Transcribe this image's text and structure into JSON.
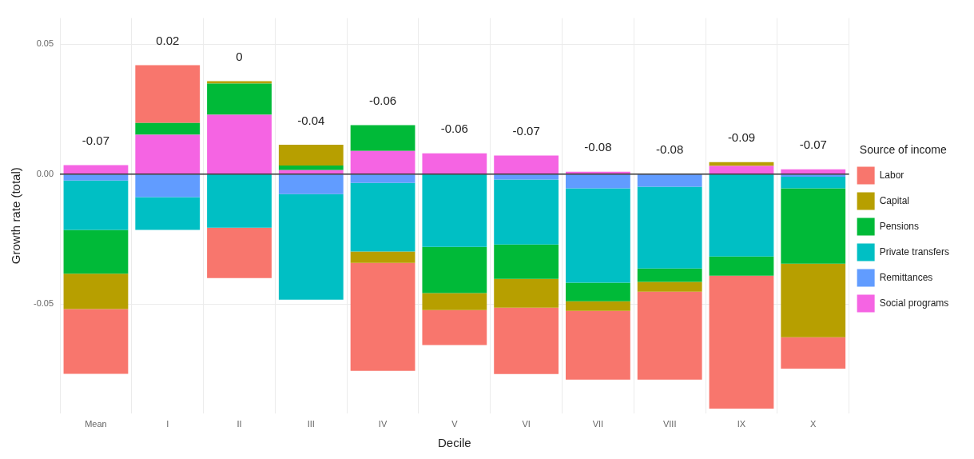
{
  "chart_data": {
    "type": "bar",
    "stacked": true,
    "xlabel": "Decile",
    "ylabel": "Growth rate (total)",
    "legend_title": "Source of income",
    "legend": "right",
    "grid": true,
    "categories": [
      "Mean",
      "I",
      "II",
      "III",
      "IV",
      "V",
      "VI",
      "VII",
      "VIII",
      "IX",
      "X"
    ],
    "series": [
      {
        "name": "Social programs",
        "color": "#f564e3",
        "values": [
          0.0034,
          0.0151,
          0.0228,
          0.0015,
          0.0089,
          0.008,
          0.0071,
          0.0009,
          0,
          0.0031,
          0.0018
        ]
      },
      {
        "name": "Remittances",
        "color": "#619cff",
        "values": [
          -0.0025,
          -0.0089,
          0,
          -0.0077,
          -0.0034,
          0,
          -0.0021,
          -0.0055,
          -0.0049,
          0,
          -0.001
        ]
      },
      {
        "name": "Private transfers",
        "color": "#00bfc4",
        "values": [
          -0.019,
          -0.0126,
          -0.0206,
          -0.0406,
          -0.0264,
          -0.028,
          -0.025,
          -0.0363,
          -0.0314,
          -0.0317,
          -0.0045
        ]
      },
      {
        "name": "Pensions",
        "color": "#00ba38",
        "values": [
          -0.0168,
          0.0046,
          0.012,
          0.0018,
          0.0099,
          -0.0178,
          -0.0132,
          -0.0071,
          -0.0052,
          -0.0074,
          -0.029
        ]
      },
      {
        "name": "Capital",
        "color": "#b79f00",
        "values": [
          -0.0136,
          0,
          0.0009,
          0.008,
          -0.0044,
          -0.0065,
          -0.0111,
          -0.0037,
          -0.0037,
          0.0015,
          -0.0283
        ]
      },
      {
        "name": "Labor",
        "color": "#f8766d",
        "values": [
          -0.0249,
          0.0222,
          -0.0194,
          0,
          -0.0415,
          -0.0135,
          -0.0255,
          -0.0265,
          -0.0339,
          -0.0511,
          -0.012
        ]
      }
    ],
    "totals": [
      "-0.07",
      "0.02",
      "0",
      "-0.04",
      "-0.06",
      "-0.06",
      "-0.07",
      "-0.08",
      "-0.08",
      "-0.09",
      "-0.07"
    ],
    "ref_lines": [
      {
        "axis": "y",
        "value": 0,
        "color": "#333333"
      }
    ],
    "ylim": [
      -0.092,
      0.06
    ],
    "yticks": [
      -0.05,
      {
        "value": 0,
        "label": "0.00"
      },
      0.05
    ]
  }
}
